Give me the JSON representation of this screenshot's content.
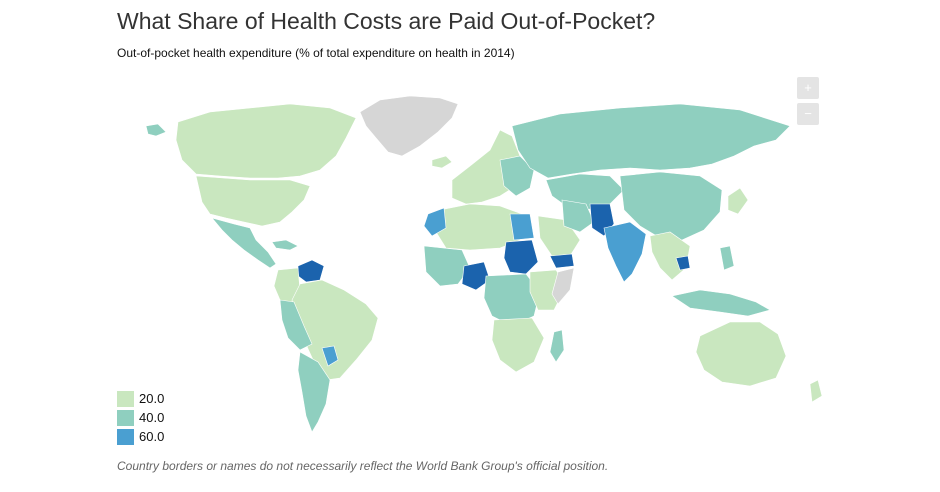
{
  "title": "What Share of Health Costs are Paid Out-of-Pocket?",
  "subtitle": "Out-of-pocket health expenditure (% of total expenditure on health in 2014)",
  "zoom": {
    "in_label": "+",
    "out_label": "−"
  },
  "legend": {
    "items": [
      {
        "label": "20.0",
        "color": "#c9e7bf"
      },
      {
        "label": "40.0",
        "color": "#8fcfbf"
      },
      {
        "label": "60.0",
        "color": "#4a9fd1"
      }
    ]
  },
  "colors": {
    "low": "#c9e7bf",
    "mid": "#8fcfbf",
    "high": "#4a9fd1",
    "very_high": "#1b63ad",
    "no_data": "#d6d6d6"
  },
  "disclaimer": "Country borders or names do not necessarily reflect the World Bank Group's official position."
}
